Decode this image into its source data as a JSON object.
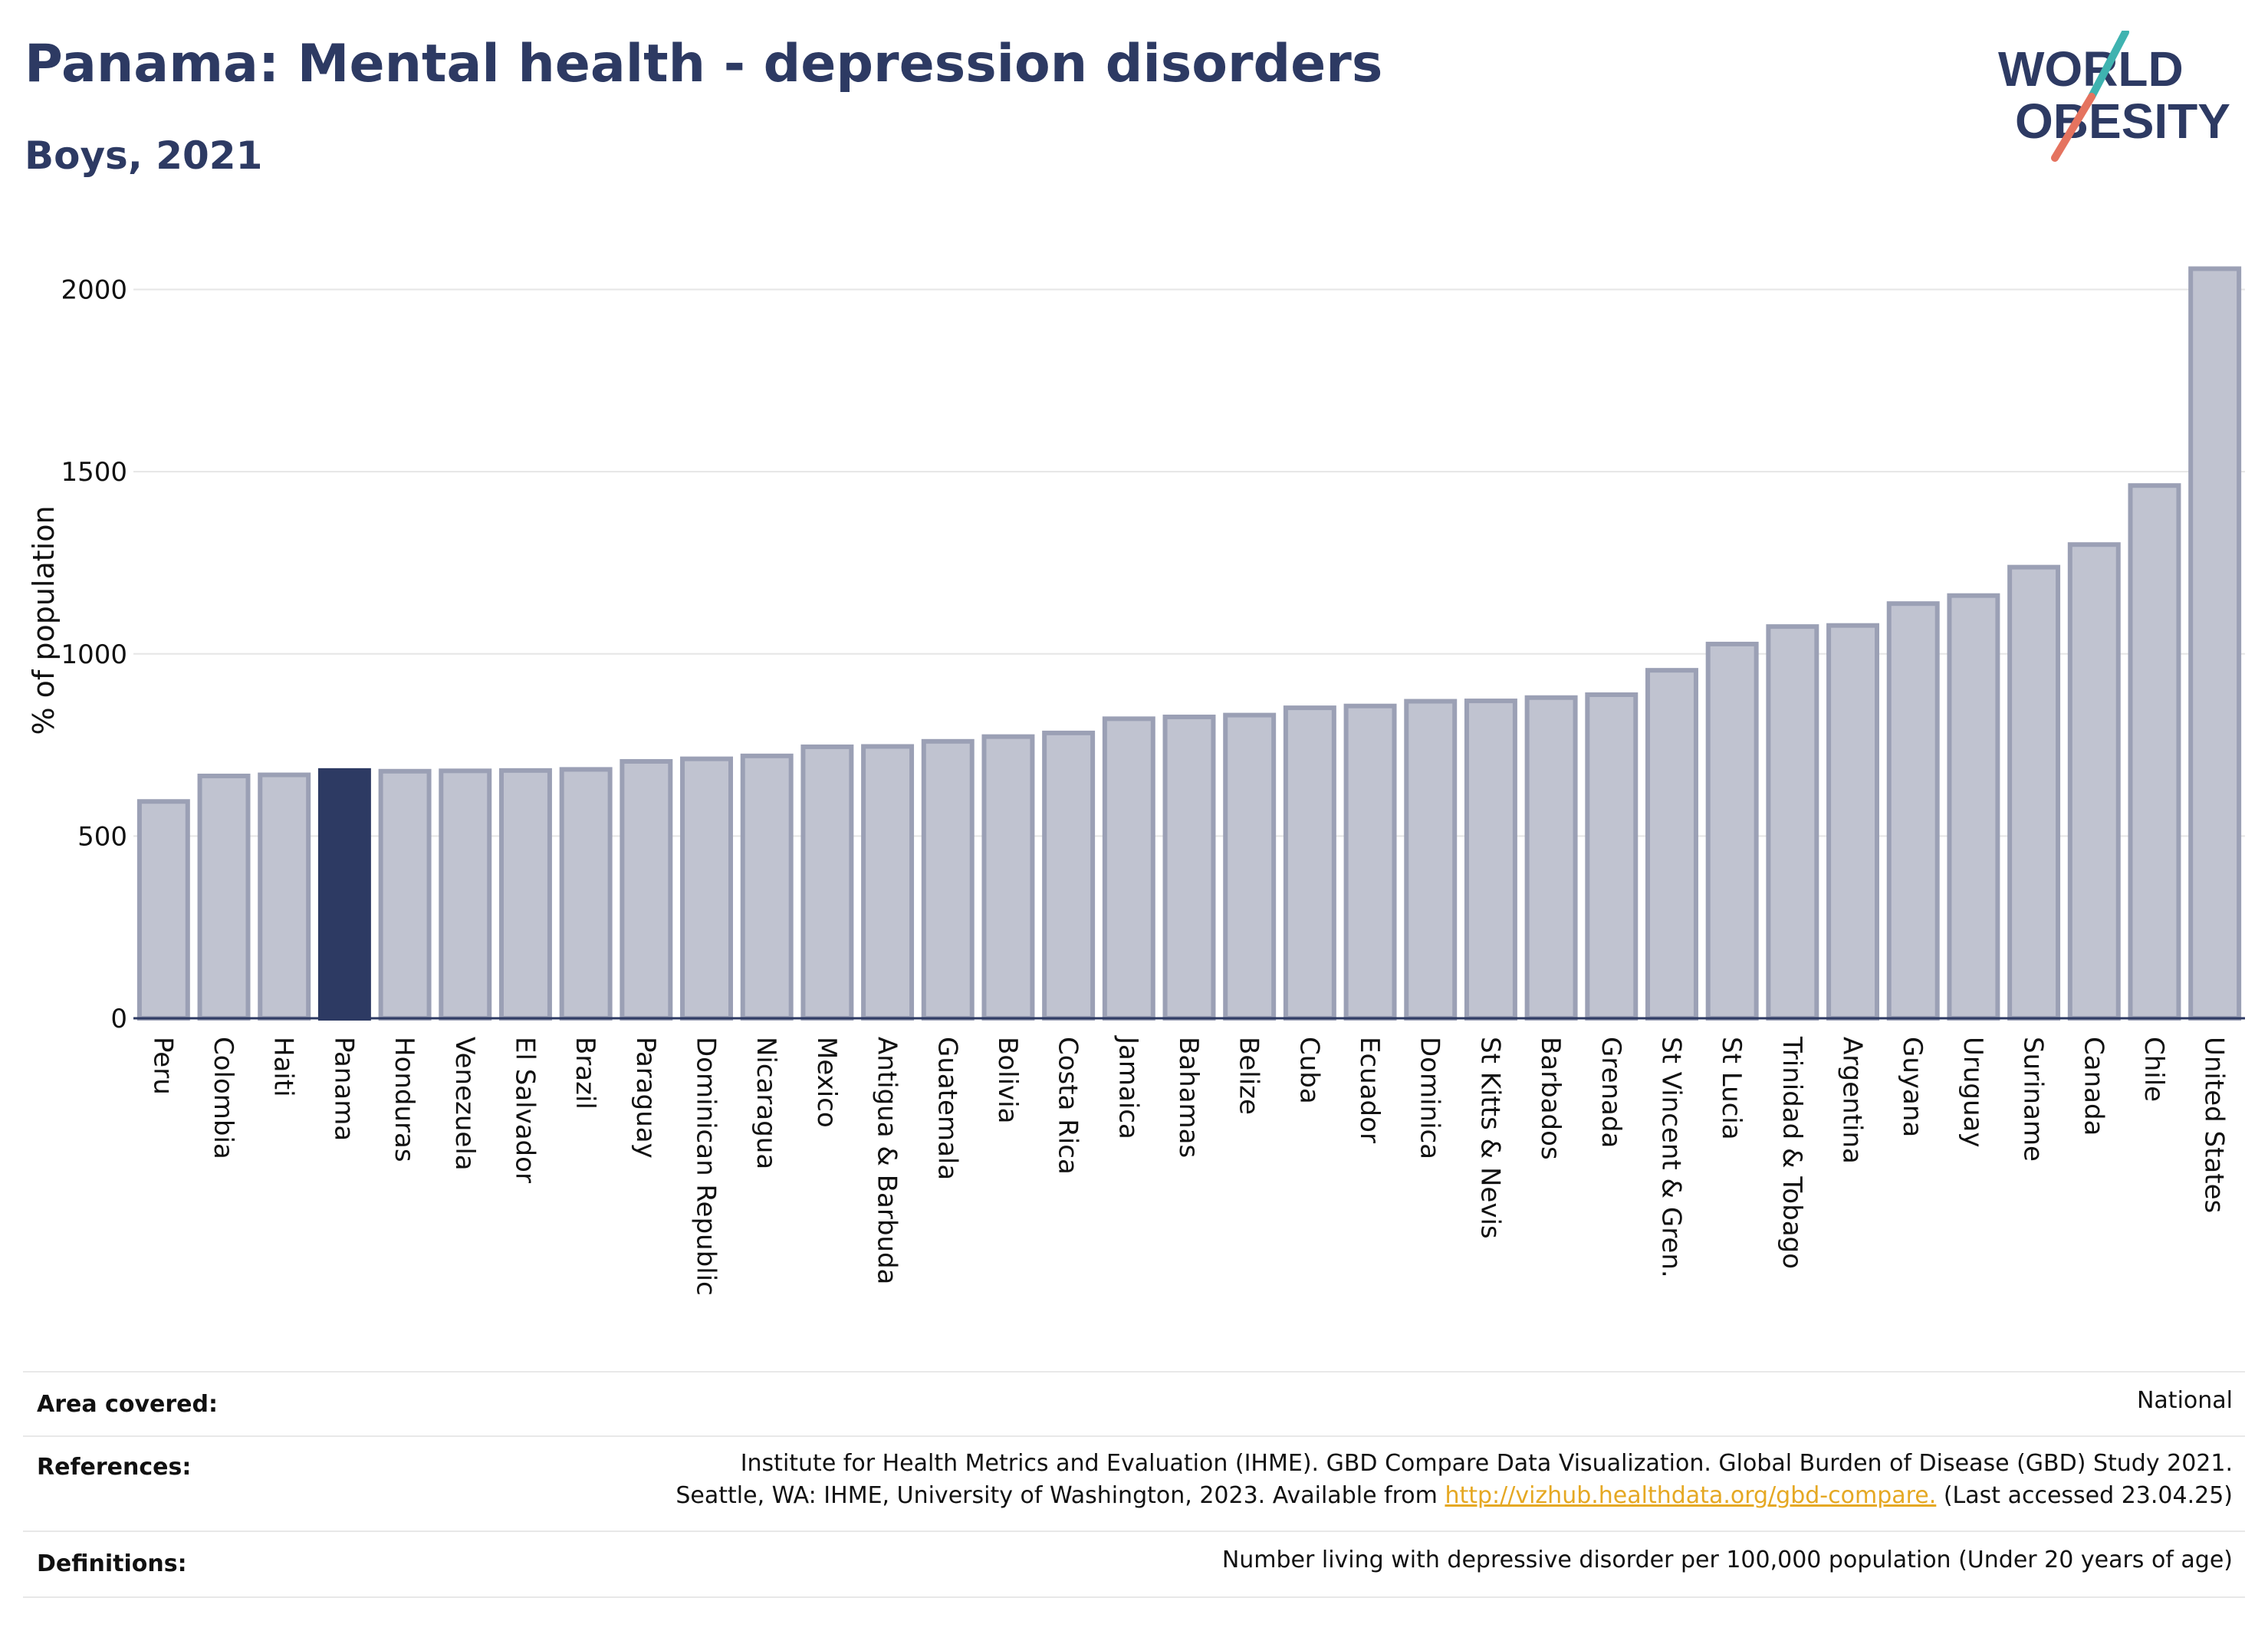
{
  "header": {
    "title": "Panama: Mental health - depression disorders",
    "subtitle": "Boys, 2021",
    "logo_line1": "WORLD",
    "logo_line2": "OBESITY"
  },
  "colors": {
    "title": "#2d3a63",
    "bar": "#c0c3d0",
    "bar_stroke": "#9ba0b5",
    "highlight": "#2d3a63",
    "link": "#e5a823",
    "logo_teal": "#3fb3b0",
    "logo_coral": "#e5735f"
  },
  "chart_data": {
    "type": "bar",
    "ylabel": "% of population",
    "xlabel": "",
    "ylim": [
      0,
      2100
    ],
    "yticks": [
      0,
      500,
      1000,
      1500,
      2000
    ],
    "grid": true,
    "highlight": "Panama",
    "categories": [
      "Peru",
      "Colombia",
      "Haiti",
      "Panama",
      "Honduras",
      "Venezuela",
      "El Salvador",
      "Brazil",
      "Paraguay",
      "Dominican Republic",
      "Nicaragua",
      "Mexico",
      "Antigua & Barbuda",
      "Guatemala",
      "Bolivia",
      "Costa Rica",
      "Jamaica",
      "Bahamas",
      "Belize",
      "Cuba",
      "Ecuador",
      "Dominica",
      "St Kitts & Nevis",
      "Barbados",
      "Grenada",
      "St Vincent & Gren.",
      "St Lucia",
      "Trinidad & Tobago",
      "Argentina",
      "Guyana",
      "Uruguay",
      "Suriname",
      "Canada",
      "Chile",
      "United States"
    ],
    "values": [
      595,
      665,
      668,
      680,
      678,
      679,
      680,
      683,
      705,
      712,
      720,
      745,
      746,
      760,
      773,
      783,
      822,
      827,
      832,
      852,
      857,
      870,
      871,
      880,
      888,
      955,
      1027,
      1075,
      1078,
      1138,
      1160,
      1238,
      1300,
      1462,
      2057
    ]
  },
  "meta": {
    "area_label": "Area covered:",
    "area_value": "National",
    "references_label": "References:",
    "references_line1": "Institute for Health Metrics and Evaluation (IHME). GBD Compare Data Visualization. Global Burden of Disease (GBD) Study 2021.",
    "references_line2_prefix": "Seattle, WA: IHME, University of Washington, 2023. Available from",
    "references_link": "http://vizhub.healthdata.org/gbd-compare.",
    "references_line2_suffix": "(Last accessed 23.04.25)",
    "definitions_label": "Definitions:",
    "definitions_value": "Number living with depressive disorder per 100,000 population (Under 20 years of age)"
  }
}
